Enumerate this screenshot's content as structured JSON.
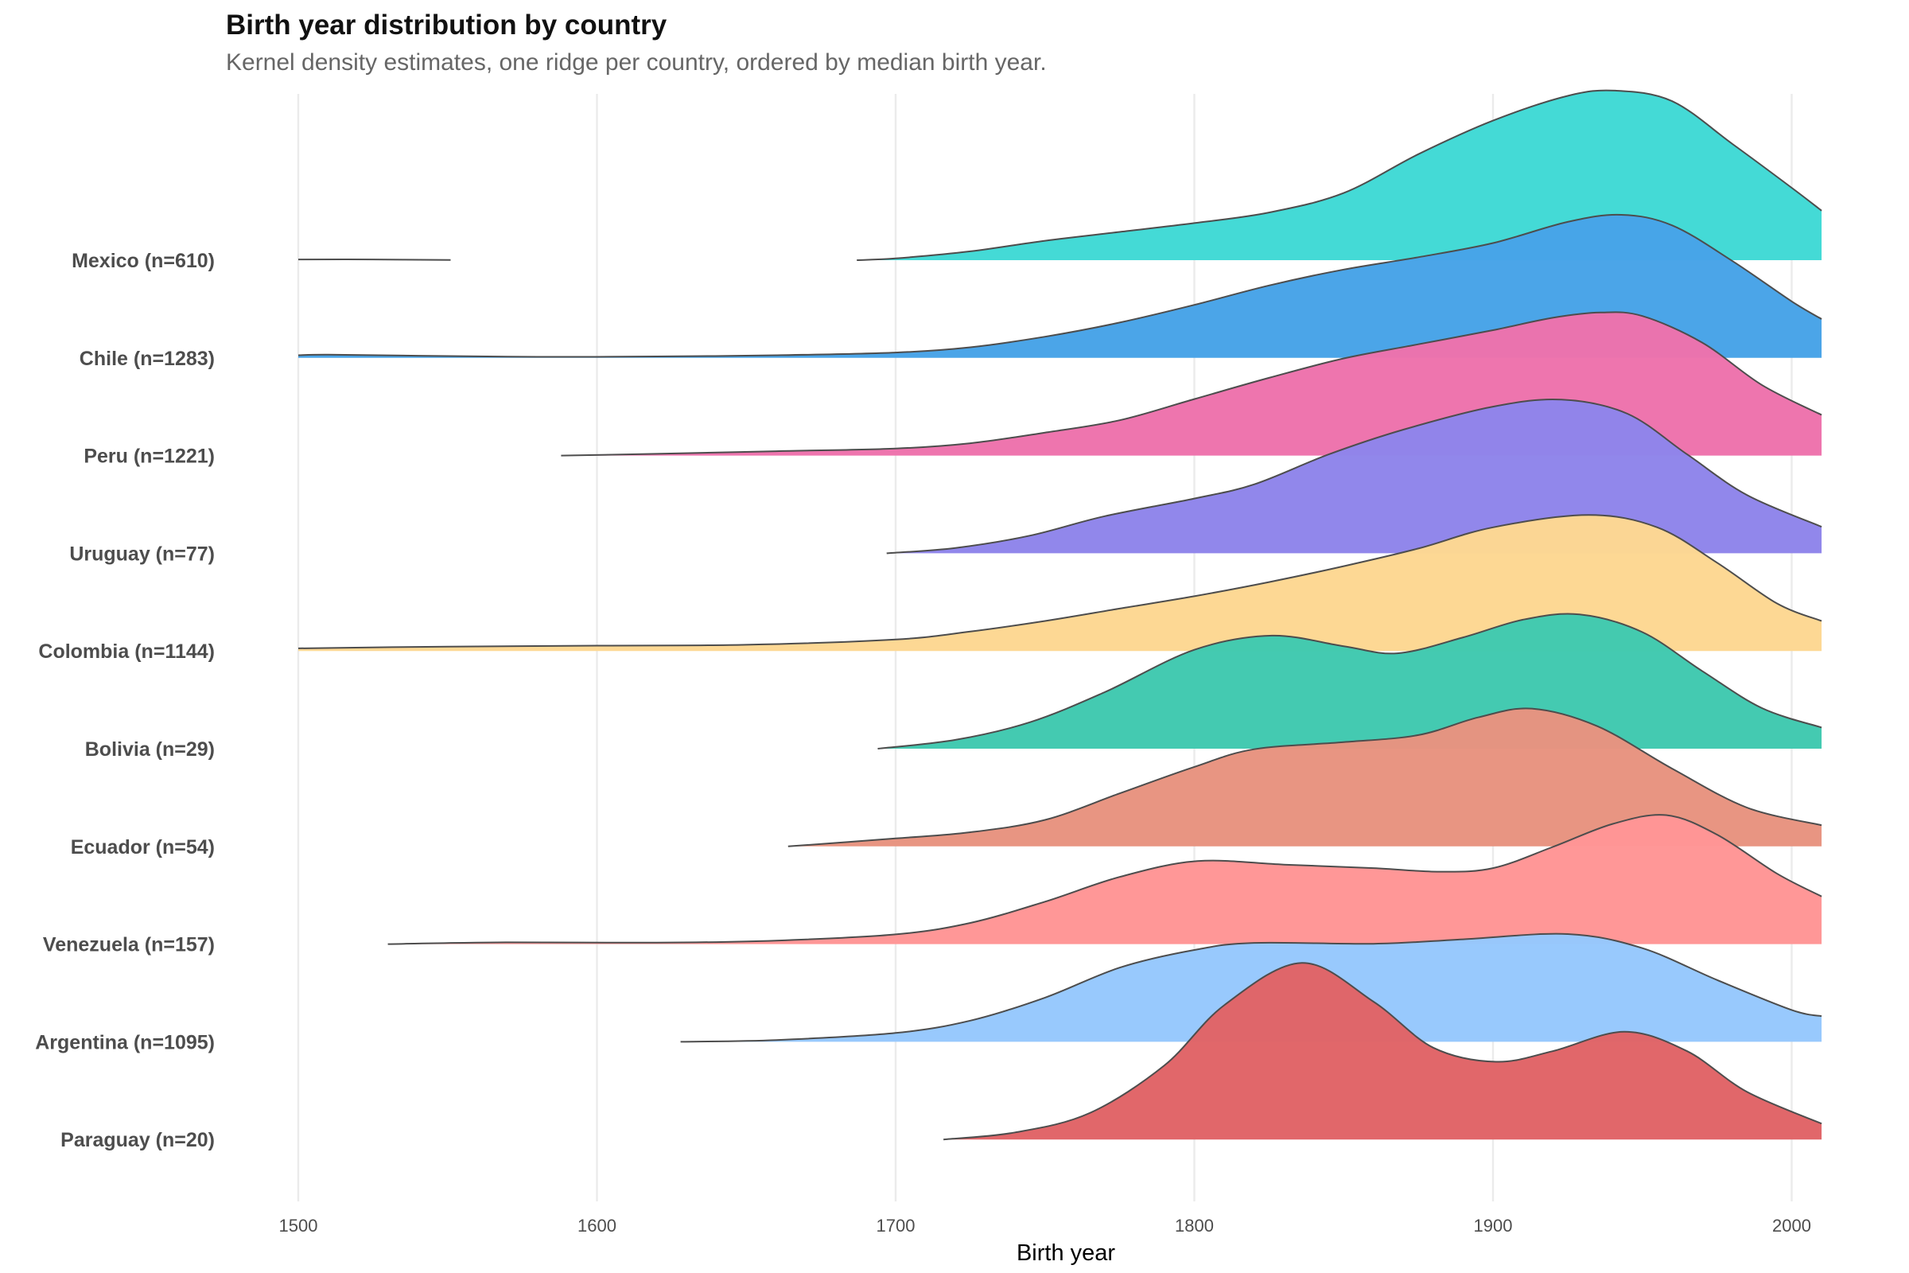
{
  "header": {
    "title": "Birth year distribution by country",
    "subtitle": "Kernel density estimates, one ridge per country, ordered by median birth year."
  },
  "chart_data": {
    "type": "ridgeline",
    "title": "Birth year distribution by country",
    "subtitle": "Kernel density estimates, one ridge per country, ordered by median birth year.",
    "xlabel": "Birth year",
    "ylabel": "",
    "xlim": [
      1475,
      2010
    ],
    "x_ticks": [
      1500,
      1600,
      1700,
      1800,
      1900,
      2000
    ],
    "grid": "vertical major gridlines",
    "density_units": "relative density (1.0 = tallest ridge peak)",
    "outline_color": "#4d4d4d",
    "series": [
      {
        "name": "Mexico",
        "label": "Mexico (n=610)",
        "n": 610,
        "color": "#40D9D5",
        "segments": [
          {
            "x": [
              1500,
              1525,
              1551
            ],
            "y": [
              0.004,
              0.004,
              0.001
            ]
          },
          {
            "x": [
              1687,
              1700,
              1725,
              1750,
              1775,
              1800,
              1825,
              1850,
              1875,
              1900,
              1925,
              1941,
              1960,
              1980,
              2000,
              2010
            ],
            "y": [
              0.0,
              0.01,
              0.05,
              0.11,
              0.16,
              0.21,
              0.27,
              0.38,
              0.6,
              0.79,
              0.93,
              0.96,
              0.9,
              0.66,
              0.41,
              0.28
            ]
          }
        ]
      },
      {
        "name": "Chile",
        "label": "Chile (n=1283)",
        "n": 1283,
        "color": "#47A3E8",
        "segments": [
          {
            "x": [
              1500,
              1510,
              1540,
              1580,
              1620,
              1660,
              1700,
              1725,
              1750,
              1775,
              1800,
              1825,
              1850,
              1875,
              1900,
              1925,
              1943,
              1960,
              1980,
              2000,
              2010
            ],
            "y": [
              0.015,
              0.018,
              0.012,
              0.006,
              0.008,
              0.015,
              0.03,
              0.06,
              0.12,
              0.2,
              0.3,
              0.41,
              0.5,
              0.57,
              0.65,
              0.77,
              0.81,
              0.75,
              0.55,
              0.32,
              0.22
            ]
          }
        ]
      },
      {
        "name": "Peru",
        "label": "Peru (n=1221)",
        "n": 1221,
        "color": "#EE72AC",
        "segments": [
          {
            "x": [
              1588,
              1620,
              1660,
              1700,
              1725,
              1750,
              1775,
              1800,
              1825,
              1850,
              1875,
              1900,
              1920,
              1936,
              1950,
              1970,
              1990,
              2010
            ],
            "y": [
              0.0,
              0.01,
              0.025,
              0.04,
              0.07,
              0.13,
              0.2,
              0.32,
              0.44,
              0.55,
              0.63,
              0.71,
              0.78,
              0.81,
              0.79,
              0.64,
              0.4,
              0.23
            ]
          }
        ]
      },
      {
        "name": "Uruguay",
        "label": "Uruguay (n=77)",
        "n": 77,
        "color": "#8F85EB",
        "segments": [
          {
            "x": [
              1697,
              1720,
              1745,
              1770,
              1800,
              1820,
              1845,
              1870,
              1900,
              1923,
              1945,
              1965,
              1985,
              2010
            ],
            "y": [
              0.0,
              0.03,
              0.1,
              0.21,
              0.31,
              0.39,
              0.56,
              0.7,
              0.83,
              0.87,
              0.79,
              0.56,
              0.33,
              0.15
            ]
          }
        ]
      },
      {
        "name": "Colombia",
        "label": "Colombia (n=1144)",
        "n": 1144,
        "color": "#FDD792",
        "segments": [
          {
            "x": [
              1500,
              1550,
              1600,
              1650,
              1700,
              1725,
              1750,
              1775,
              1800,
              1825,
              1850,
              1875,
              1900,
              1932,
              1955,
              1975,
              1995,
              2010
            ],
            "y": [
              0.015,
              0.025,
              0.03,
              0.035,
              0.065,
              0.11,
              0.17,
              0.24,
              0.31,
              0.39,
              0.48,
              0.58,
              0.7,
              0.77,
              0.7,
              0.5,
              0.27,
              0.17
            ]
          }
        ]
      },
      {
        "name": "Bolivia",
        "label": "Bolivia (n=29)",
        "n": 29,
        "color": "#40C9AF",
        "segments": [
          {
            "x": [
              1694,
              1720,
              1745,
              1770,
              1800,
              1826,
              1850,
              1868,
              1890,
              1910,
              1929,
              1950,
              1970,
              1990,
              2010
            ],
            "y": [
              0.0,
              0.05,
              0.15,
              0.32,
              0.56,
              0.64,
              0.58,
              0.54,
              0.63,
              0.73,
              0.76,
              0.66,
              0.44,
              0.23,
              0.12
            ]
          }
        ]
      },
      {
        "name": "Ecuador",
        "label": "Ecuador (n=54)",
        "n": 54,
        "color": "#E8937F",
        "segments": [
          {
            "x": [
              1664,
              1700,
              1725,
              1750,
              1775,
              1800,
              1820,
              1850,
              1875,
              1895,
              1913,
              1935,
              1960,
              1985,
              2010
            ],
            "y": [
              0.0,
              0.045,
              0.08,
              0.15,
              0.3,
              0.45,
              0.55,
              0.59,
              0.63,
              0.73,
              0.78,
              0.68,
              0.44,
              0.22,
              0.12
            ]
          }
        ]
      },
      {
        "name": "Venezuela",
        "label": "Venezuela (n=157)",
        "n": 157,
        "color": "#FF9595",
        "segments": [
          {
            "x": [
              1530,
              1570,
              1620,
              1660,
              1700,
              1725,
              1750,
              1775,
              1801,
              1830,
              1860,
              1882,
              1900,
              1920,
              1940,
              1958,
              1975,
              1995,
              2010
            ],
            "y": [
              0.0,
              0.01,
              0.008,
              0.02,
              0.055,
              0.12,
              0.24,
              0.38,
              0.47,
              0.45,
              0.43,
              0.41,
              0.43,
              0.55,
              0.68,
              0.73,
              0.62,
              0.4,
              0.27
            ]
          }
        ]
      },
      {
        "name": "Argentina",
        "label": "Argentina (n=1095)",
        "n": 1095,
        "color": "#96C8FD",
        "segments": [
          {
            "x": [
              1628,
              1660,
              1700,
              1725,
              1750,
              1775,
              1800,
              1820,
              1860,
              1890,
              1925,
              1950,
              1975,
              2000,
              2010
            ],
            "y": [
              0.0,
              0.01,
              0.05,
              0.12,
              0.25,
              0.42,
              0.52,
              0.56,
              0.555,
              0.58,
              0.61,
              0.53,
              0.35,
              0.18,
              0.145
            ]
          }
        ]
      },
      {
        "name": "Paraguay",
        "label": "Paraguay (n=20)",
        "n": 20,
        "color": "#E06467",
        "segments": [
          {
            "x": [
              1716,
              1740,
              1765,
              1790,
              1810,
              1836,
              1860,
              1880,
              1901,
              1920,
              1944,
              1965,
              1985,
              2010
            ],
            "y": [
              0.0,
              0.04,
              0.15,
              0.42,
              0.76,
              1.0,
              0.78,
              0.52,
              0.44,
              0.5,
              0.61,
              0.5,
              0.27,
              0.09
            ]
          }
        ]
      }
    ]
  }
}
